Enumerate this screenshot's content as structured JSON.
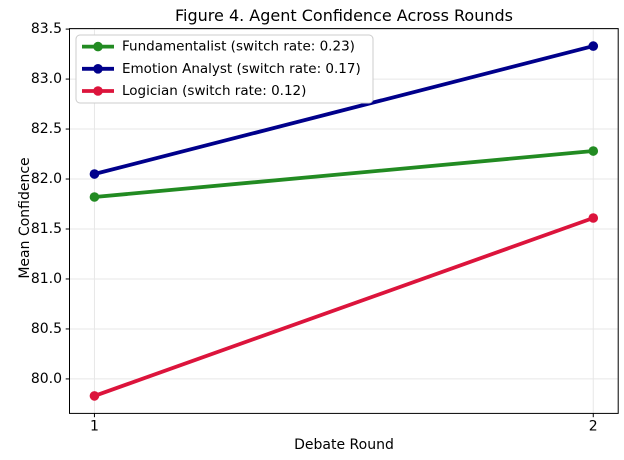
{
  "chart_data": {
    "type": "line",
    "title": "Figure 4. Agent Confidence Across Rounds",
    "xlabel": "Debate Round",
    "ylabel": "Mean Confidence",
    "x": [
      1,
      2
    ],
    "series": [
      {
        "name": "Fundamentalist (switch rate: 0.23)",
        "agent": "Fundamentalist",
        "switch_rate": "0.23",
        "color": "#228B22",
        "values": [
          81.82,
          82.28
        ]
      },
      {
        "name": "Emotion Analyst (switch rate: 0.17)",
        "agent": "Emotion Analyst",
        "switch_rate": "0.17",
        "color": "#00008B",
        "values": [
          82.05,
          83.33
        ]
      },
      {
        "name": "Logician (switch rate: 0.12)",
        "agent": "Logician",
        "switch_rate": "0.12",
        "color": "#DC143C",
        "values": [
          79.83,
          81.61
        ]
      }
    ],
    "xlim": [
      0.95,
      2.05
    ],
    "ylim": [
      79.655,
      83.505
    ],
    "xticks": [
      "1",
      "2"
    ],
    "xtick_values": [
      1,
      2
    ],
    "yticks": [
      "80.0",
      "80.5",
      "81.0",
      "81.5",
      "82.0",
      "82.5",
      "83.0",
      "83.5"
    ],
    "ytick_values": [
      80.0,
      80.5,
      81.0,
      81.5,
      82.0,
      82.5,
      83.0,
      83.5
    ],
    "grid": "on",
    "legend_position": "upper left",
    "colors": {
      "background": "#ffffff",
      "grid": "#e7e7e7",
      "spine": "#000000",
      "text": "#000000",
      "legend_border": "#cccccc",
      "legend_background": "#ffffff"
    }
  }
}
